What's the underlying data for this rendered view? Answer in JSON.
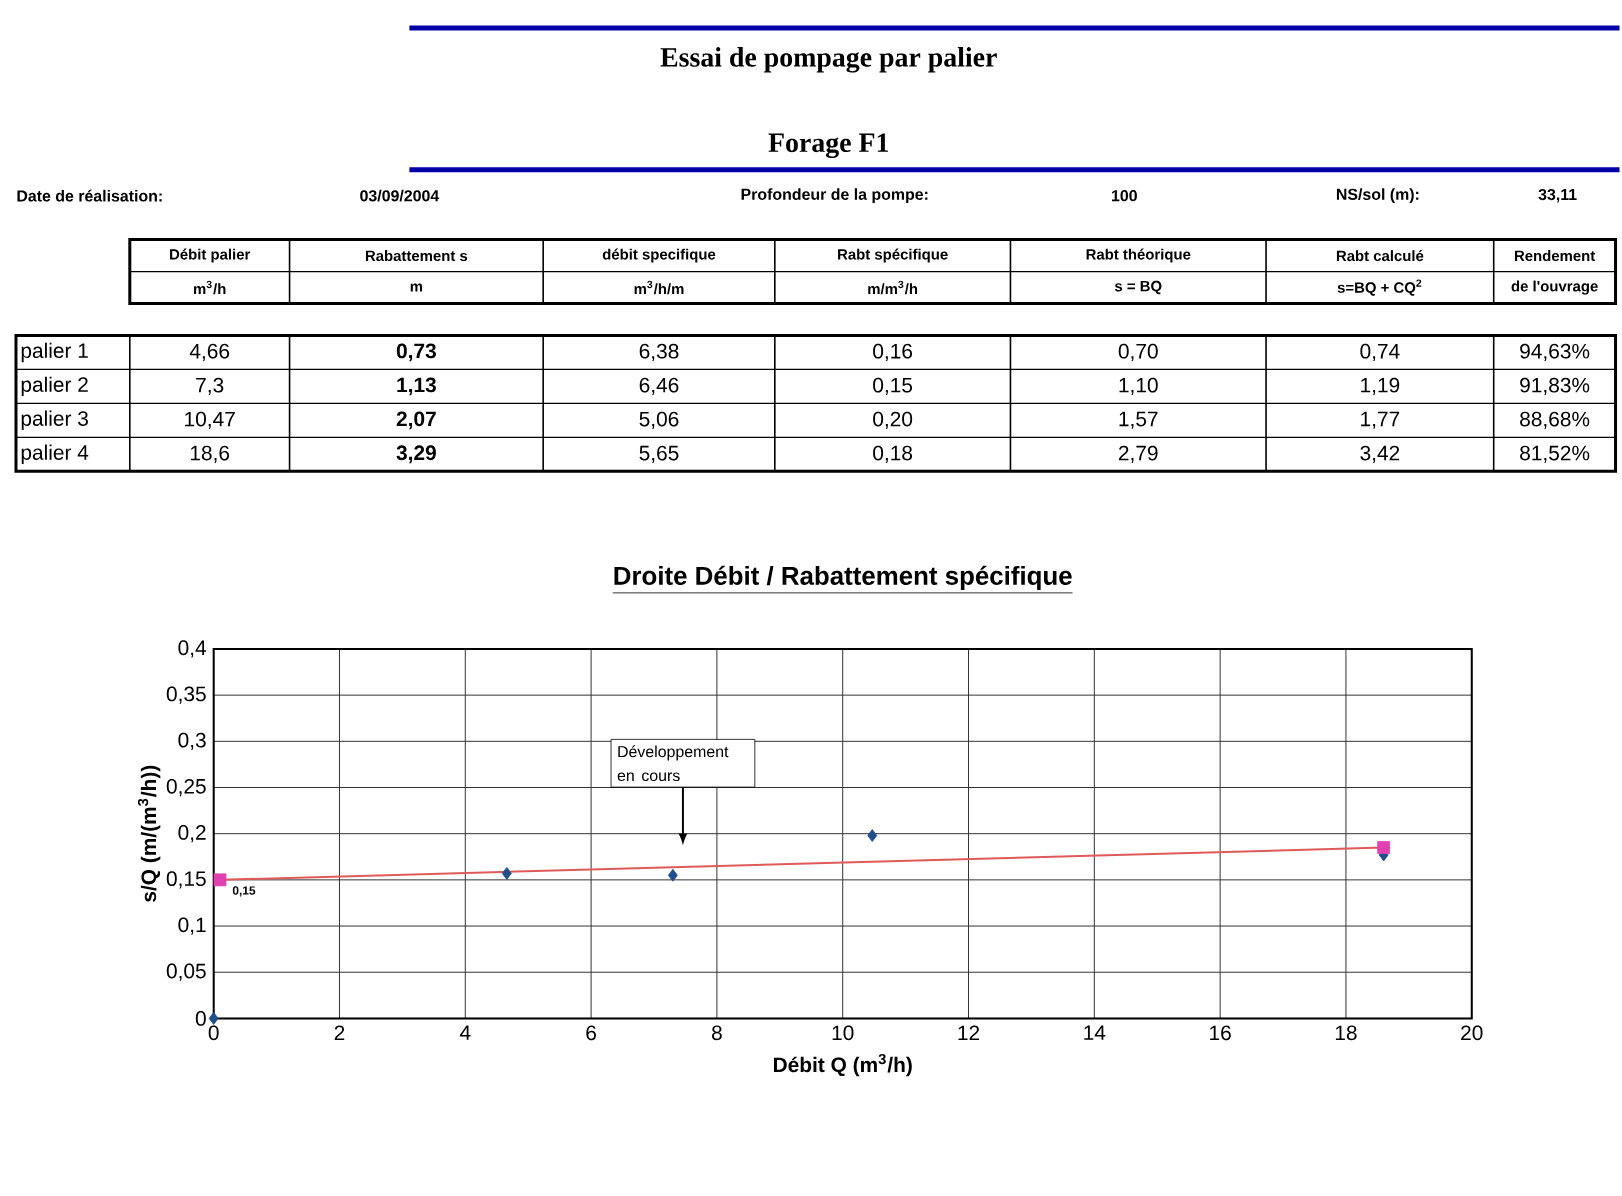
{
  "chart_data": [
    {
      "type": "other",
      "title": "Essai de pompage par palier",
      "annotations": [
        "Forage F1",
        "Date de réalisation:",
        "03/09/2004",
        "Profondeur de la pompe:",
        "100",
        "NS/sol (m):",
        "33,11",
        "Débit palier",
        "Rabattement s",
        "débit specifique",
        "Rabt spécifique",
        "Rabt théorique",
        "Rabt calculé",
        "Rendement",
        "m$^{3}$/h",
        "m",
        "m$^{3}$/h/m",
        "m/m$^{3}$/h",
        "s = BQ",
        "s=BQ + CQ$^{2}$",
        "de l'ouvrage",
        "palier 1",
        "4,66",
        "0,73",
        "6,38",
        "0,16",
        "0,70",
        "0,74",
        "94,63%",
        "palier 2",
        "7,3",
        "1,13",
        "6,46",
        "0,15",
        "1,10",
        "1,19",
        "91,83%",
        "palier 3",
        "10,47",
        "2,07",
        "5,06",
        "0,20",
        "1,57",
        "1,77",
        "88,68%",
        "palier 4",
        "18,6",
        "3,29",
        "5,65",
        "0,18",
        "2,79",
        "3,42",
        "81,52%"
      ]
    },
    {
      "type": "scatter",
      "title": "Droite Débit / Rabattement spécifique",
      "xlabel": "Débit Q (m$^{3}$/h)",
      "ylabel": "s/Q (m/(m$^{3}$/h))",
      "xlim": [
        0,
        20
      ],
      "xticks": [
        0,
        2,
        4,
        6,
        8,
        10,
        12,
        14,
        16,
        18,
        20
      ],
      "ylim": [
        0,
        0.4
      ],
      "yticks": [
        0,
        {
          "value": 0.05,
          "label": "0,05"
        },
        {
          "value": 0.1,
          "label": "0,1"
        },
        {
          "value": 0.15,
          "label": "0,15"
        },
        {
          "value": 0.2,
          "label": "0,2"
        },
        {
          "value": 0.25,
          "label": "0,25"
        },
        {
          "value": 0.3,
          "label": "0,3"
        },
        {
          "value": 0.35,
          "label": "0,35"
        },
        {
          "value": 0.4,
          "label": "0,4"
        }
      ],
      "grid": true,
      "marker": "diamond",
      "series": [
        {
          "type": "scatter",
          "color": "#1f4e8c",
          "x": [
            0,
            4.66,
            7.3,
            10.47,
            18.6
          ],
          "values": [
            0,
            0.157,
            0.155,
            0.198,
            0.177
          ]
        },
        {
          "type": "line",
          "color": "#e05a5a",
          "marker": "none",
          "x": [
            0.1,
            18.6
          ],
          "values": [
            0.15,
            0.185
          ]
        },
        {
          "type": "scatter",
          "color": "#e040b0",
          "marker": "square",
          "x": [
            0.1,
            18.6
          ],
          "values": [
            0.15,
            0.185
          ]
        }
      ],
      "annotations": [
        {
          "text": "0,15",
          "x": 0.1,
          "y": 0.15
        },
        "Développement en cours"
      ]
    }
  ]
}
